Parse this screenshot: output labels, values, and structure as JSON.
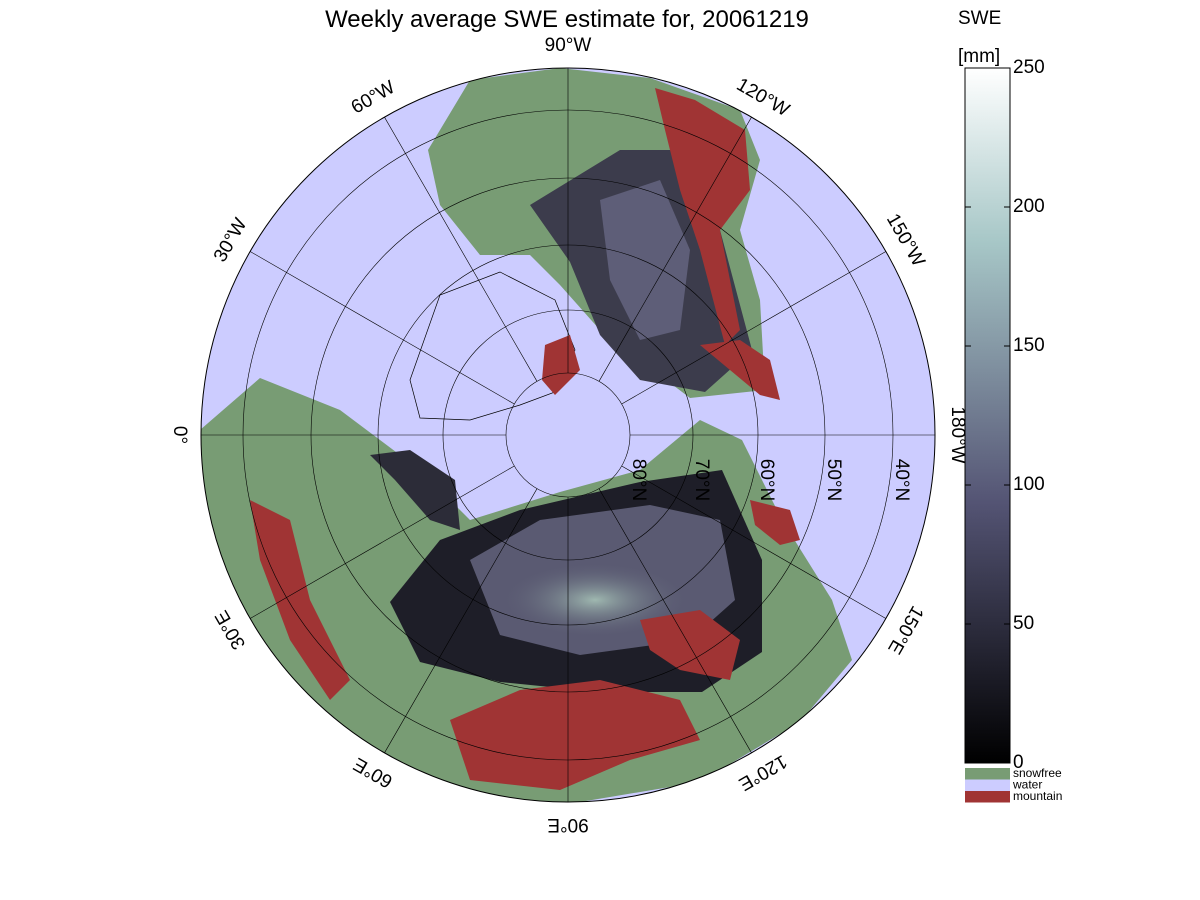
{
  "title": "Weekly average SWE estimate for, 20061219",
  "meridian_labels": [
    "0°",
    "30°W",
    "60°W",
    "90°W",
    "120°W",
    "150°W",
    "180°W",
    "150°E",
    "120°E",
    "90°E",
    "60°E",
    "30°E"
  ],
  "parallel_labels": [
    "80°N",
    "70°N",
    "60°N",
    "50°N",
    "40°N"
  ],
  "colorbar": {
    "title": "SWE",
    "unit": "[mm]",
    "clim": [
      0,
      250
    ],
    "ticks": [
      0,
      50,
      100,
      150,
      200,
      250
    ]
  },
  "legend": [
    {
      "name": "snowfree",
      "color": "#789c74"
    },
    {
      "name": "water",
      "color": "#ccccff"
    },
    {
      "name": "mountain",
      "color": "#a03434"
    }
  ]
}
